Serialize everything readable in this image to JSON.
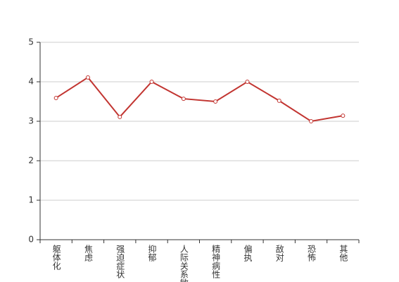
{
  "chart_data": {
    "type": "line",
    "categories": [
      "躯体化",
      "焦虑",
      "强迫症状",
      "抑郁",
      "人际关系敏感",
      "精神病性",
      "偏执",
      "敌对",
      "恐怖",
      "其他"
    ],
    "series": [
      {
        "color": "#c23531",
        "values": [
          3.59,
          4.11,
          3.11,
          4.0,
          3.57,
          3.5,
          4.0,
          3.52,
          3.0,
          3.14
        ]
      }
    ],
    "ylim": [
      0,
      5
    ],
    "yticks": [
      0,
      1,
      2,
      3,
      4,
      5
    ],
    "grid": true
  }
}
